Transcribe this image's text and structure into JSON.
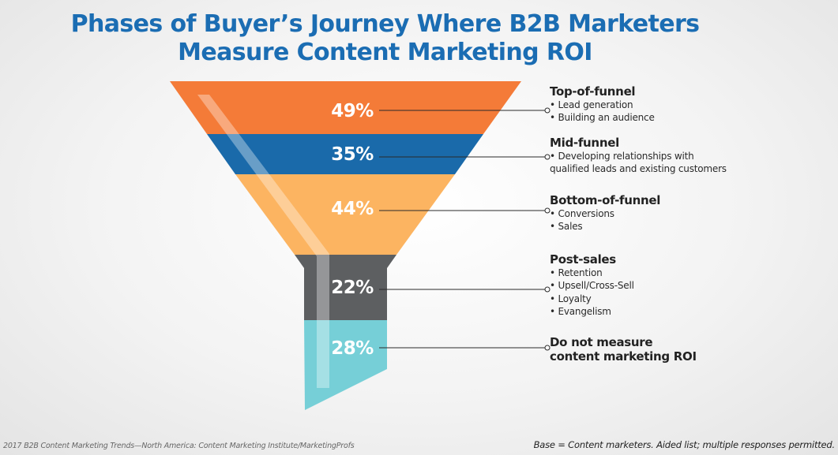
{
  "chart_data": {
    "type": "funnel",
    "title": "Phases of Buyer’s Journey Where B2B Marketers Measure Content Marketing ROI",
    "title_lines": [
      "Phases of Buyer’s Journey Where B2B Marketers",
      "Measure Content Marketing ROI"
    ],
    "unit": "%",
    "stages": [
      {
        "label": "49%",
        "value": 49,
        "color": "#f47b38",
        "heading": "Top-of-funnel",
        "items": [
          "Lead generation",
          "Building an audience"
        ]
      },
      {
        "label": "35%",
        "value": 35,
        "color": "#1a6aaa",
        "heading": "Mid-funnel",
        "items": [
          "Developing relationships with\nqualified leads and existing customers"
        ]
      },
      {
        "label": "44%",
        "value": 44,
        "color": "#fcb461",
        "heading": "Bottom-of-funnel",
        "items": [
          "Conversions",
          "Sales"
        ]
      },
      {
        "label": "22%",
        "value": 22,
        "color": "#5d5f61",
        "heading": "Post-sales",
        "items": [
          "Retention",
          "Upsell/Cross-Sell",
          "Loyalty",
          "Evangelism"
        ]
      },
      {
        "label": "28%",
        "value": 28,
        "color": "#76cfd7",
        "heading": "Do not measure\ncontent marketing ROI",
        "items": []
      }
    ]
  },
  "footer": {
    "source": "2017 B2B Content Marketing Trends—North America: Content Marketing Institute/MarketingProfs",
    "base": "Base = Content marketers. Aided list; multiple responses permitted."
  },
  "colors": {
    "title": "#1b6db3",
    "text": "#222222"
  }
}
